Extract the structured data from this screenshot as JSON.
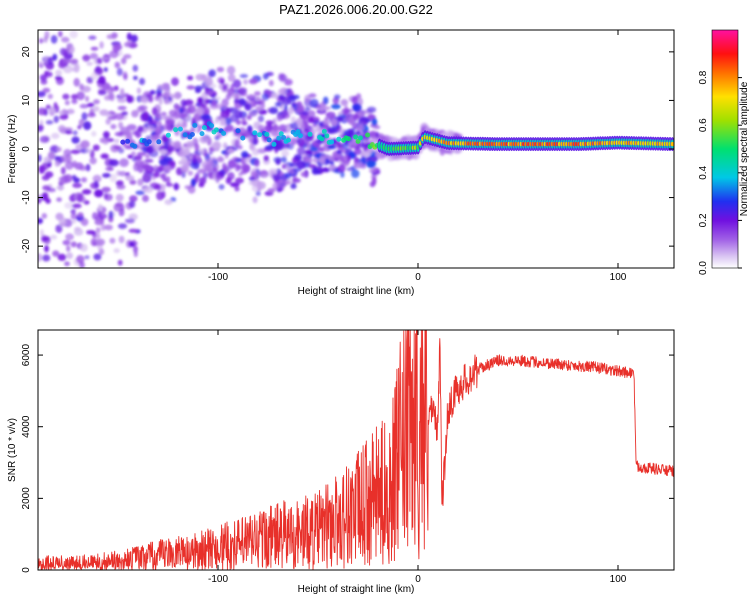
{
  "figure": {
    "title": "PAZ1.2026.006.20.00.G22"
  },
  "chart_data": [
    {
      "type": "heatmap",
      "title": "PAZ1.2026.006.20.00.G22",
      "xlabel": "Height of straight line (km)",
      "ylabel": "Frequency (Hz)",
      "xlim": [
        -190,
        128
      ],
      "ylim": [
        -24.5,
        24.5
      ],
      "xticks": [
        -100,
        0,
        100
      ],
      "yticks": [
        -20,
        -10,
        0,
        10,
        20
      ],
      "colorbar": {
        "label": "Normalized spectral amplitude",
        "range": [
          0,
          1
        ],
        "ticks": [
          0.0,
          0.2,
          0.4,
          0.6,
          0.8
        ],
        "tick_labels": [
          "0.0",
          "0.2",
          "0.4",
          "0.6",
          "0.8"
        ],
        "colormap": "rainbow (white-violet-blue-cyan-green-yellow-red-magenta)"
      },
      "ridge": [
        {
          "x": -150,
          "f": 0.5,
          "amp": 0.25
        },
        {
          "x": -120,
          "f": 3.0,
          "amp": 0.3
        },
        {
          "x": -100,
          "f": 4.5,
          "amp": 0.3
        },
        {
          "x": -80,
          "f": 2.0,
          "amp": 0.3
        },
        {
          "x": -50,
          "f": 2.5,
          "amp": 0.3
        },
        {
          "x": -30,
          "f": 2.5,
          "amp": 0.45
        },
        {
          "x": -15,
          "f": 0.0,
          "amp": 0.5
        },
        {
          "x": 0,
          "f": 0.3,
          "amp": 0.6
        },
        {
          "x": 3,
          "f": 2.5,
          "amp": 0.7
        },
        {
          "x": 15,
          "f": 1.2,
          "amp": 0.75
        },
        {
          "x": 40,
          "f": 1.0,
          "amp": 0.8
        },
        {
          "x": 80,
          "f": 1.0,
          "amp": 0.8
        },
        {
          "x": 100,
          "f": 1.3,
          "amp": 0.75
        },
        {
          "x": 128,
          "f": 1.0,
          "amp": 0.7
        }
      ]
    },
    {
      "type": "line",
      "xlabel": "Height of straight line (km)",
      "ylabel": "SNR (10 * v/v)",
      "xlim": [
        -190,
        128
      ],
      "ylim": [
        0,
        6700
      ],
      "xticks": [
        -100,
        0,
        100
      ],
      "yticks": [
        0,
        2000,
        4000,
        6000
      ],
      "color": "#e8302a",
      "series": [
        {
          "name": "SNR",
          "x": [
            -190,
            -170,
            -150,
            -140,
            -130,
            -120,
            -110,
            -100,
            -90,
            -80,
            -70,
            -60,
            -50,
            -40,
            -30,
            -22,
            -16,
            -12,
            -8,
            -4,
            0,
            5,
            8,
            10,
            11,
            12,
            15,
            20,
            30,
            40,
            50,
            60,
            70,
            80,
            90,
            100,
            108,
            109,
            115,
            128
          ],
          "y": [
            150,
            150,
            220,
            300,
            380,
            440,
            500,
            600,
            700,
            850,
            950,
            1000,
            1100,
            1400,
            1700,
            2000,
            2200,
            2600,
            3500,
            3900,
            4200,
            4500,
            4300,
            4000,
            6500,
            1700,
            4500,
            5100,
            5600,
            5850,
            5850,
            5800,
            5750,
            5700,
            5650,
            5550,
            5500,
            2900,
            2850,
            2750
          ]
        }
      ]
    }
  ]
}
